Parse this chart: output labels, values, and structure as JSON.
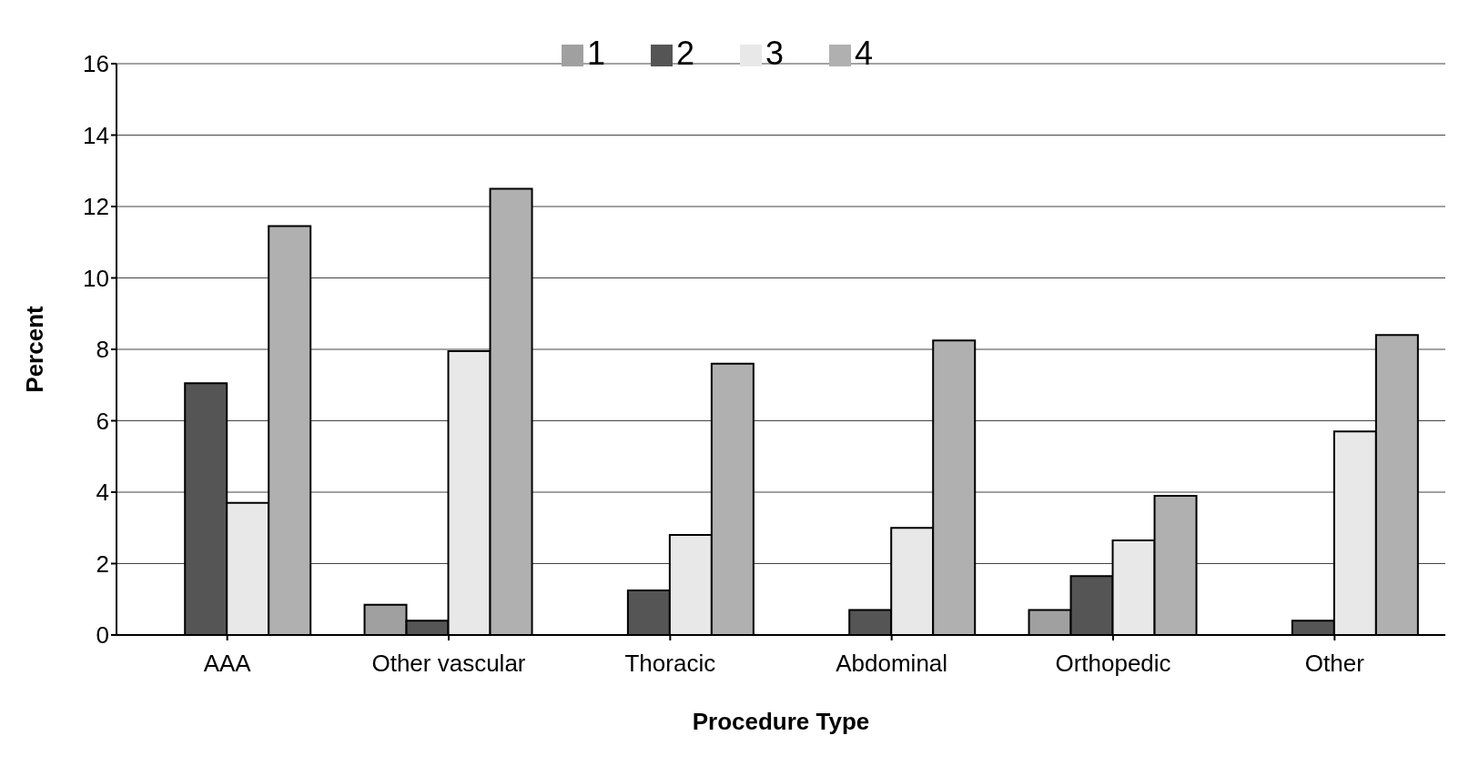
{
  "chart_data": {
    "type": "bar",
    "xlabel": "Procedure Type",
    "ylabel": "Percent",
    "categories": [
      "AAA",
      "Other vascular",
      "Thoracic",
      "Abdominal",
      "Orthopedic",
      "Other"
    ],
    "series": [
      {
        "name": "1",
        "color": "#a0a0a0",
        "values": [
          0,
          0.85,
          0,
          0,
          0.7,
          0
        ]
      },
      {
        "name": "2",
        "color": "#555555",
        "values": [
          7.05,
          0.4,
          1.25,
          0.7,
          1.65,
          0.4
        ]
      },
      {
        "name": "3",
        "color": "#e8e8e8",
        "values": [
          3.7,
          7.95,
          2.8,
          3.0,
          2.65,
          5.7
        ]
      },
      {
        "name": "4",
        "color": "#b0b0b0",
        "values": [
          11.45,
          12.5,
          7.6,
          8.25,
          3.9,
          8.4
        ]
      }
    ],
    "ylim": [
      0,
      16
    ],
    "yticks": [
      0,
      2,
      4,
      6,
      8,
      10,
      12,
      14,
      16
    ],
    "grid": "y",
    "legend": "top"
  }
}
